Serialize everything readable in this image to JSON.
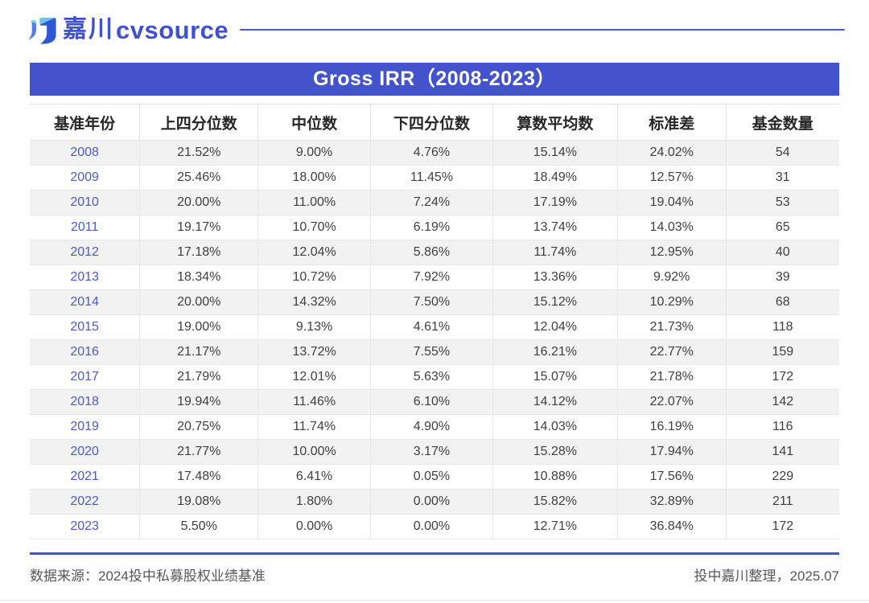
{
  "brand": {
    "name_cn": "嘉川",
    "name_en": "cvsource"
  },
  "title": "Gross IRR（2008-2023）",
  "chart_data": {
    "type": "table",
    "title": "Gross IRR（2008-2023）",
    "columns": [
      "基准年份",
      "上四分位数",
      "中位数",
      "下四分位数",
      "算数平均数",
      "标准差",
      "基金数量"
    ],
    "rows": [
      [
        "2008",
        "21.52%",
        "9.00%",
        "4.76%",
        "15.14%",
        "24.02%",
        "54"
      ],
      [
        "2009",
        "25.46%",
        "18.00%",
        "11.45%",
        "18.49%",
        "12.57%",
        "31"
      ],
      [
        "2010",
        "20.00%",
        "11.00%",
        "7.24%",
        "17.19%",
        "19.04%",
        "53"
      ],
      [
        "2011",
        "19.17%",
        "10.70%",
        "6.19%",
        "13.74%",
        "14.03%",
        "65"
      ],
      [
        "2012",
        "17.18%",
        "12.04%",
        "5.86%",
        "11.74%",
        "12.95%",
        "40"
      ],
      [
        "2013",
        "18.34%",
        "10.72%",
        "7.92%",
        "13.36%",
        "9.92%",
        "39"
      ],
      [
        "2014",
        "20.00%",
        "14.32%",
        "7.50%",
        "15.12%",
        "10.29%",
        "68"
      ],
      [
        "2015",
        "19.00%",
        "9.13%",
        "4.61%",
        "12.04%",
        "21.73%",
        "118"
      ],
      [
        "2016",
        "21.17%",
        "13.72%",
        "7.55%",
        "16.21%",
        "22.77%",
        "159"
      ],
      [
        "2017",
        "21.79%",
        "12.01%",
        "5.63%",
        "15.07%",
        "21.78%",
        "172"
      ],
      [
        "2018",
        "19.94%",
        "11.46%",
        "6.10%",
        "14.12%",
        "22.07%",
        "142"
      ],
      [
        "2019",
        "20.75%",
        "11.74%",
        "4.90%",
        "14.03%",
        "16.19%",
        "116"
      ],
      [
        "2020",
        "21.77%",
        "10.00%",
        "3.17%",
        "15.28%",
        "17.94%",
        "141"
      ],
      [
        "2021",
        "17.48%",
        "6.41%",
        "0.05%",
        "10.88%",
        "17.56%",
        "229"
      ],
      [
        "2022",
        "19.08%",
        "1.80%",
        "0.00%",
        "15.82%",
        "32.89%",
        "211"
      ],
      [
        "2023",
        "5.50%",
        "0.00%",
        "0.00%",
        "12.71%",
        "36.84%",
        "172"
      ]
    ]
  },
  "footer": {
    "source": "数据来源：2024投中私募股权业绩基准",
    "credit": "投中嘉川整理，2025.07"
  },
  "colors": {
    "accent": "#4353cb",
    "year_link": "#4a5ace",
    "stripe": "#f2f2f2",
    "border": "#e7e7e7"
  }
}
